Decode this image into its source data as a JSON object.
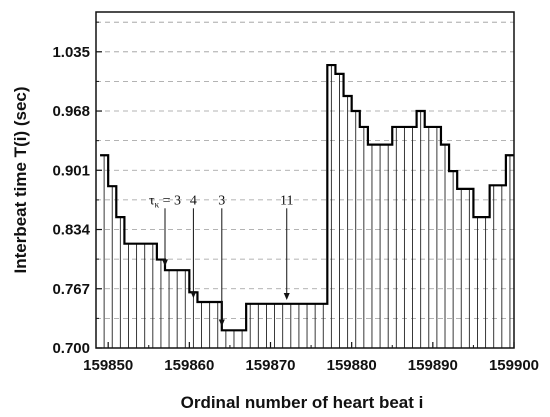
{
  "chart_data": {
    "type": "line",
    "xlabel": "Ordinal number of heart beat i",
    "ylabel": "Interbeat time T(i) (sec)",
    "xlim": [
      159848.5,
      159900
    ],
    "ylim": [
      0.7,
      1.08
    ],
    "x_ticks": [
      159850,
      159860,
      159870,
      159880,
      159890,
      159900
    ],
    "y_ticks": [
      0.7,
      0.767,
      0.834,
      0.901,
      0.968,
      1.035
    ],
    "y_tick_labels": [
      "0.700",
      "0.767",
      "0.834",
      "0.901",
      "0.968",
      "1.035"
    ],
    "grid": "horizontal dashed",
    "series": [
      {
        "x": [
          159849,
          159850,
          159851,
          159852,
          159853,
          159854,
          159855,
          159856,
          159857,
          159858,
          159859,
          159860,
          159861,
          159862,
          159863,
          159864,
          159865,
          159866,
          159867,
          159868,
          159869,
          159870,
          159871,
          159872,
          159873,
          159874,
          159875,
          159876,
          159877,
          159878,
          159879,
          159880,
          159881,
          159882,
          159883,
          159884,
          159885,
          159886,
          159887,
          159888,
          159889,
          159890,
          159891,
          159892,
          159893,
          159894,
          159895,
          159896,
          159897,
          159898,
          159899
        ],
        "values": [
          0.918,
          0.883,
          0.848,
          0.818,
          0.818,
          0.818,
          0.818,
          0.8,
          0.788,
          0.788,
          0.788,
          0.763,
          0.752,
          0.752,
          0.752,
          0.72,
          0.72,
          0.72,
          0.75,
          0.75,
          0.75,
          0.75,
          0.75,
          0.75,
          0.75,
          0.75,
          0.75,
          0.75,
          1.02,
          1.01,
          0.985,
          0.968,
          0.95,
          0.93,
          0.93,
          0.93,
          0.95,
          0.95,
          0.95,
          0.968,
          0.95,
          0.95,
          0.93,
          0.9,
          0.88,
          0.88,
          0.848,
          0.848,
          0.884,
          0.884,
          0.918
        ]
      }
    ],
    "annotations": [
      {
        "label": "τ",
        "sub": "κ",
        "suffix": " = 3",
        "x": 159857,
        "y": 0.79
      },
      {
        "label": "4",
        "x": 159860.5,
        "y": 0.754
      },
      {
        "label": "3",
        "x": 159864,
        "y": 0.722
      },
      {
        "label": "11",
        "x": 159872,
        "y": 0.752
      }
    ]
  }
}
